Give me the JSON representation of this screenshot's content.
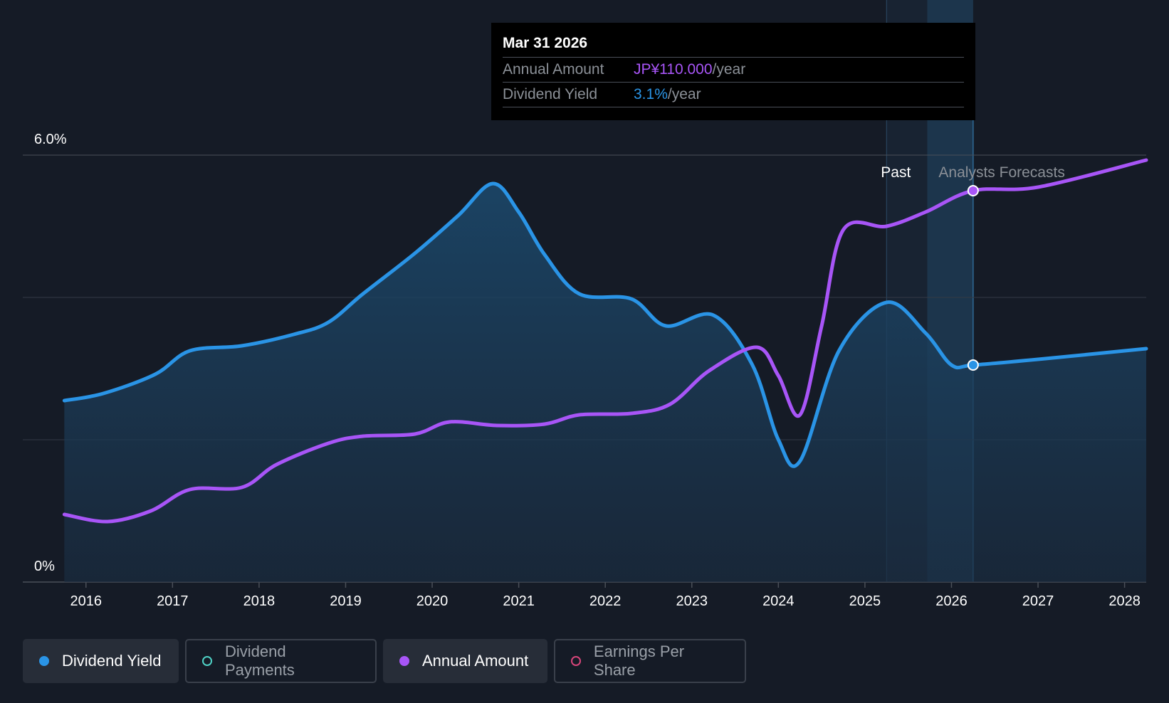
{
  "tooltip": {
    "date": "Mar 31 2026",
    "annual_label": "Annual Amount",
    "annual_value": "JP¥110.000",
    "annual_unit": "/year",
    "yield_label": "Dividend Yield",
    "yield_value": "3.1%",
    "yield_unit": "/year"
  },
  "legend": [
    {
      "label": "Dividend Yield",
      "color": "#2a94e6",
      "active": true
    },
    {
      "label": "Dividend Payments",
      "color": "#4fd1c5",
      "active": false
    },
    {
      "label": "Annual Amount",
      "color": "#a855f7",
      "active": true
    },
    {
      "label": "Earnings Per Share",
      "color": "#d6457a",
      "active": false
    }
  ],
  "chart_data": {
    "type": "line",
    "title": "",
    "xlabel": "",
    "ylabel": "",
    "ylim": [
      0,
      6.0
    ],
    "xlim": [
      2015.27,
      2028.25
    ],
    "y_tick_labels": [
      "6.0%",
      "0%"
    ],
    "x_ticks": [
      2016,
      2017,
      2018,
      2019,
      2020,
      2021,
      2022,
      2023,
      2024,
      2025,
      2026,
      2027,
      2028
    ],
    "past_label": "Past",
    "forecast_label": "Analysts Forecasts",
    "past_end_x": 2025.25,
    "forecast_start_x": 2025.72,
    "cursor_x": 2026.25,
    "series": [
      {
        "name": "Dividend Yield",
        "color": "#2a94e6",
        "unit": "%",
        "points": [
          [
            2015.75,
            2.55
          ],
          [
            2016.2,
            2.65
          ],
          [
            2016.8,
            2.92
          ],
          [
            2017.2,
            3.25
          ],
          [
            2017.8,
            3.32
          ],
          [
            2018.4,
            3.48
          ],
          [
            2018.8,
            3.65
          ],
          [
            2019.2,
            4.05
          ],
          [
            2019.8,
            4.62
          ],
          [
            2020.3,
            5.15
          ],
          [
            2020.7,
            5.6
          ],
          [
            2021.0,
            5.2
          ],
          [
            2021.3,
            4.6
          ],
          [
            2021.7,
            4.05
          ],
          [
            2022.3,
            3.98
          ],
          [
            2022.7,
            3.6
          ],
          [
            2023.25,
            3.75
          ],
          [
            2023.7,
            3.05
          ],
          [
            2024.0,
            2.0
          ],
          [
            2024.25,
            1.7
          ],
          [
            2024.7,
            3.25
          ],
          [
            2025.25,
            3.93
          ],
          [
            2025.7,
            3.5
          ],
          [
            2026.0,
            3.05
          ],
          [
            2026.25,
            3.05
          ],
          [
            2027.0,
            3.13
          ],
          [
            2028.25,
            3.28
          ]
        ]
      },
      {
        "name": "Annual Amount",
        "color": "#a855f7",
        "unit": "%-axis",
        "points": [
          [
            2015.75,
            0.95
          ],
          [
            2016.25,
            0.85
          ],
          [
            2016.75,
            1.0
          ],
          [
            2017.2,
            1.3
          ],
          [
            2017.8,
            1.33
          ],
          [
            2018.2,
            1.65
          ],
          [
            2018.8,
            1.95
          ],
          [
            2019.2,
            2.05
          ],
          [
            2019.8,
            2.08
          ],
          [
            2020.2,
            2.25
          ],
          [
            2020.75,
            2.2
          ],
          [
            2021.3,
            2.22
          ],
          [
            2021.7,
            2.35
          ],
          [
            2022.3,
            2.37
          ],
          [
            2022.75,
            2.5
          ],
          [
            2023.2,
            2.97
          ],
          [
            2023.75,
            3.3
          ],
          [
            2024.0,
            2.9
          ],
          [
            2024.25,
            2.35
          ],
          [
            2024.5,
            3.6
          ],
          [
            2024.75,
            4.95
          ],
          [
            2025.25,
            5.0
          ],
          [
            2025.7,
            5.2
          ],
          [
            2026.25,
            5.5
          ],
          [
            2027.0,
            5.55
          ],
          [
            2028.25,
            5.93
          ]
        ]
      }
    ]
  }
}
